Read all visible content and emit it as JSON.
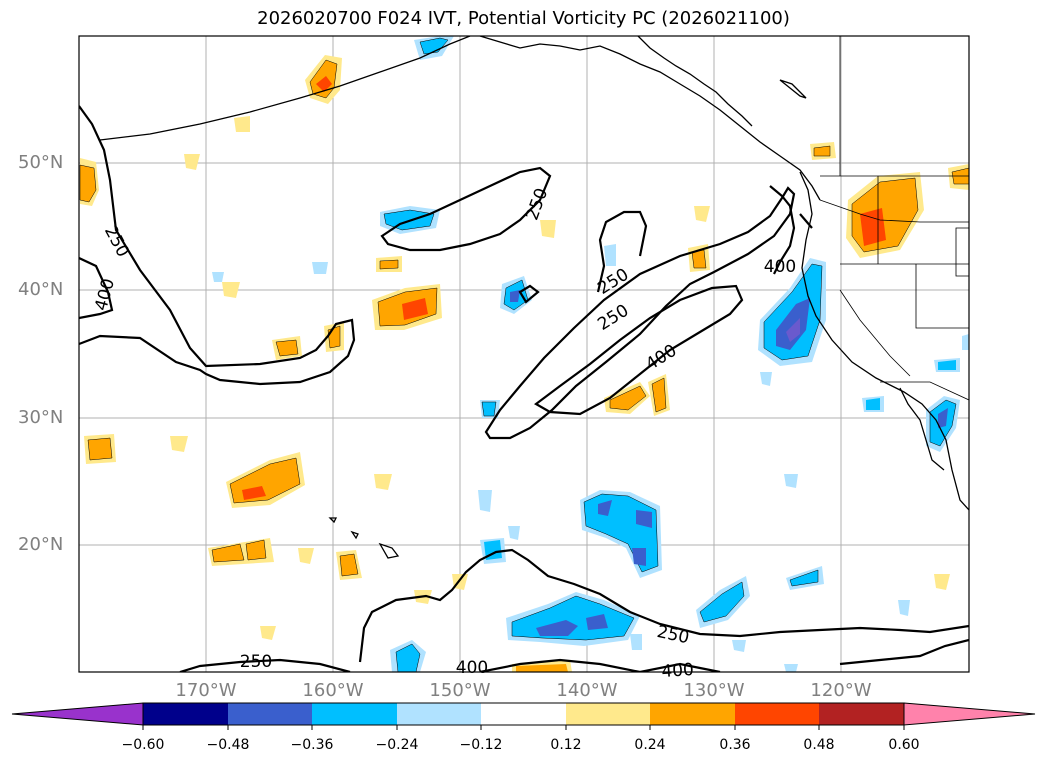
{
  "title": "2026020700 F024 IVT, Potential Vorticity PC (2026021100)",
  "lat_labels": [
    "50°N",
    "40°N",
    "30°N",
    "20°N"
  ],
  "lon_labels": [
    "170°W",
    "160°W",
    "150°W",
    "140°W",
    "130°W",
    "120°W"
  ],
  "contour_labels": [
    "250",
    "400",
    "250",
    "250",
    "250",
    "400",
    "400",
    "250",
    "250",
    "400",
    "400"
  ],
  "colorbar": {
    "ticks": [
      "−0.60",
      "−0.48",
      "−0.36",
      "−0.24",
      "−0.12",
      "0.12",
      "0.24",
      "0.36",
      "0.48",
      "0.60"
    ],
    "colors": [
      "#9932cc",
      "#00008b",
      "#3a5fcd",
      "#00bfff",
      "#b0e2ff",
      "#ffffff",
      "#ffe98c",
      "#ffa500",
      "#ff4500",
      "#b22222",
      "#ff82ab"
    ]
  },
  "colors": {
    "land_line": "#000000",
    "grid": "#b0b0b0",
    "axis_label": "#808080"
  }
}
